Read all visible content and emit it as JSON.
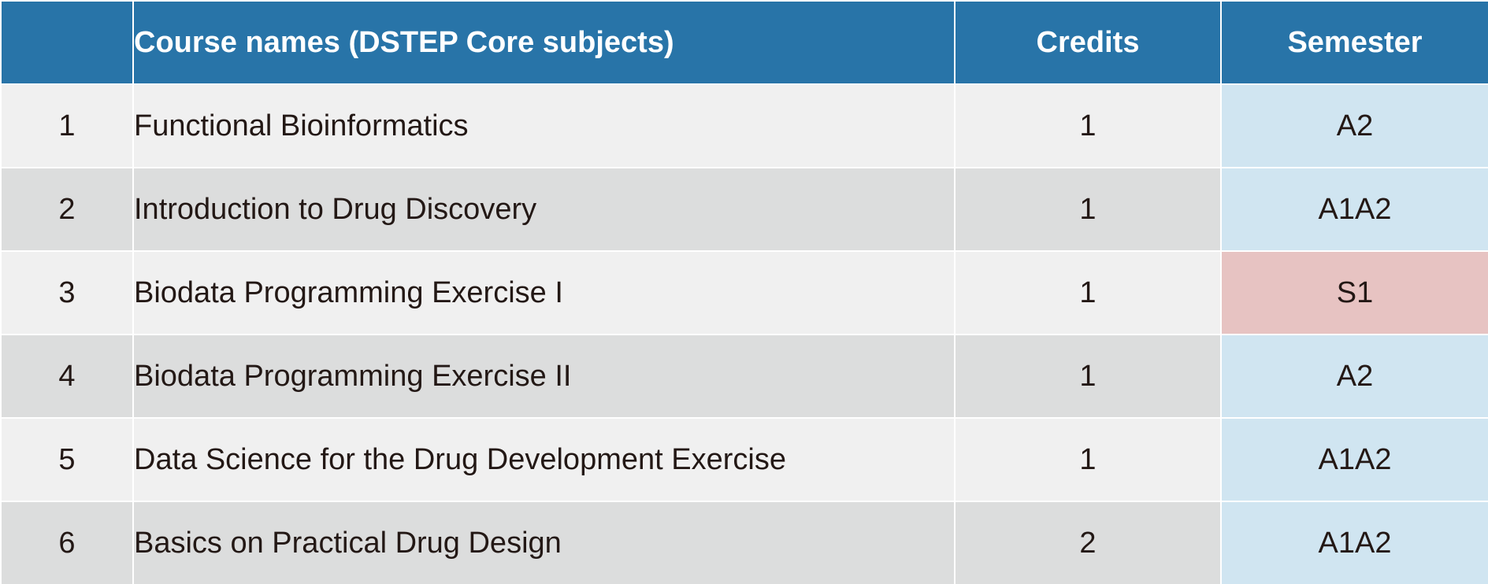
{
  "table": {
    "headers": {
      "number": "",
      "course_name": "Course names (DSTEP Core subjects)",
      "credits": "Credits",
      "semester": "Semester"
    },
    "rows": [
      {
        "no": "1",
        "name": "Functional Bioinformatics",
        "credits": "1",
        "semester": "A2"
      },
      {
        "no": "2",
        "name": "Introduction to Drug Discovery",
        "credits": "1",
        "semester": "A1A2"
      },
      {
        "no": "3",
        "name": "Biodata Programming Exercise I",
        "credits": "1",
        "semester": "S1"
      },
      {
        "no": "4",
        "name": "Biodata Programming Exercise II",
        "credits": "1",
        "semester": "A2"
      },
      {
        "no": "5",
        "name": "Data Science for the Drug Development Exercise",
        "credits": "1",
        "semester": "A1A2"
      },
      {
        "no": "6",
        "name": "Basics on Practical Drug Design",
        "credits": "2",
        "semester": "A1A2"
      }
    ]
  },
  "colors": {
    "header_bg": "#2874a8",
    "row_light": "#f0f0f0",
    "row_dark": "#dcdddd",
    "semester_autumn": "#d0e5f1",
    "semester_spring": "#e7c3c2"
  }
}
